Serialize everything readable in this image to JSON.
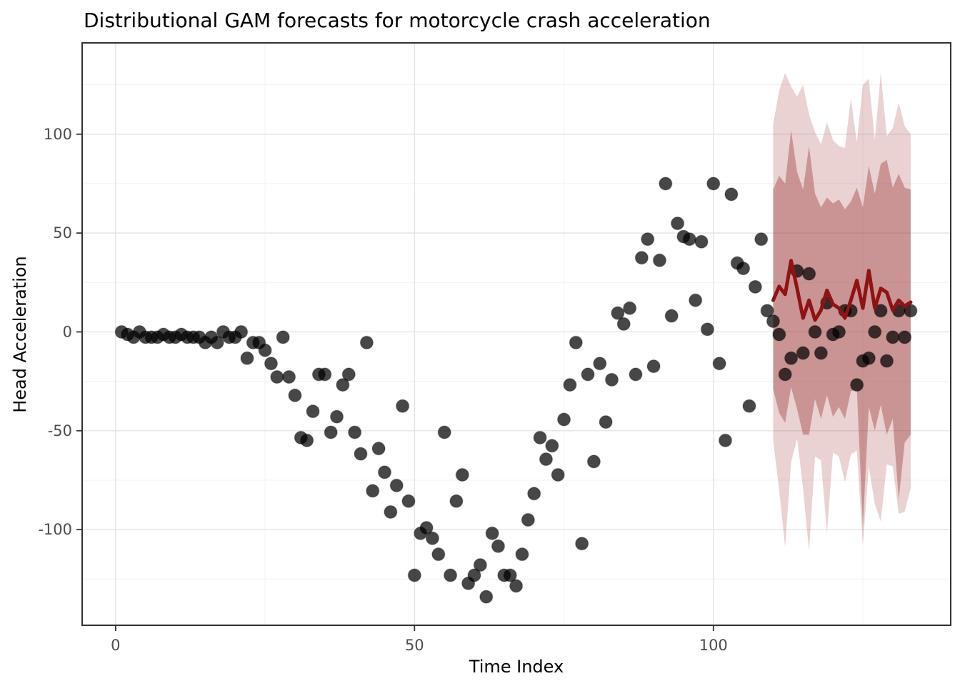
{
  "chart_data": {
    "type": "scatter",
    "title": "Distributional GAM forecasts for motorcycle crash acceleration",
    "xlabel": "Time Index",
    "ylabel": "Head Acceleration",
    "xlim": [
      -5.6,
      139.7
    ],
    "ylim": [
      -148.4,
      146.2
    ],
    "grid": "major+minor",
    "legend_position": "none",
    "x_ticks": {
      "major": [
        0,
        50,
        100
      ],
      "minor": [
        25,
        75,
        125
      ],
      "labels": [
        "0",
        "50",
        "100"
      ]
    },
    "y_ticks": {
      "major": [
        100,
        50,
        0,
        -50,
        -100
      ],
      "minor": [
        125,
        75,
        25,
        -25,
        -75,
        -125
      ],
      "labels": [
        "100",
        "50",
        "0",
        "-50",
        "-100"
      ]
    },
    "observed": {
      "name": "observed head acceleration",
      "x_start": 1,
      "values": [
        0.0,
        -1.3,
        -2.7,
        0.0,
        -2.7,
        -2.7,
        -2.7,
        -1.3,
        -2.7,
        -2.7,
        -1.3,
        -2.7,
        -2.7,
        -2.7,
        -5.4,
        -2.7,
        -5.4,
        0.0,
        -2.7,
        -2.7,
        0.0,
        -13.3,
        -5.4,
        -5.4,
        -9.3,
        -16.0,
        -22.8,
        -2.7,
        -22.8,
        -32.1,
        -53.5,
        -54.9,
        -40.2,
        -21.5,
        -21.5,
        -50.8,
        -42.9,
        -26.8,
        -21.5,
        -50.8,
        -61.7,
        -5.4,
        -80.4,
        -59.0,
        -71.0,
        -91.1,
        -77.7,
        -37.5,
        -85.6,
        -123.1,
        -101.9,
        -99.1,
        -104.4,
        -112.5,
        -50.8,
        -123.1,
        -85.6,
        -72.3,
        -127.2,
        -123.1,
        -117.9,
        -134.0,
        -101.9,
        -108.4,
        -123.1,
        -123.1,
        -128.5,
        -112.5,
        -95.1,
        -81.8,
        -53.5,
        -64.4,
        -57.6,
        -72.3,
        -44.3,
        -26.8,
        -5.4,
        -107.1,
        -21.5,
        -65.6,
        -16.0,
        -45.6,
        -24.2,
        9.5,
        4.0,
        12.0,
        -21.5,
        37.5,
        46.9,
        -17.4,
        36.2,
        75.0,
        8.1,
        54.9,
        48.2,
        46.9,
        16.0,
        45.6,
        1.3,
        75.0,
        -16.0,
        -54.9,
        69.6,
        34.8,
        32.1,
        -37.5,
        22.8,
        46.9,
        10.7,
        5.4,
        -1.3,
        -21.5,
        -13.3,
        30.8,
        -10.7,
        29.4,
        0.0,
        -10.7,
        14.7,
        -1.3,
        0.0,
        10.7,
        10.7,
        -26.8,
        -14.7,
        -13.3,
        0.0,
        10.7,
        -14.7,
        -2.7,
        10.7,
        -2.7,
        10.7
      ]
    },
    "forecast": {
      "name": "GAM forecast",
      "x_start": 110,
      "mean": [
        16,
        23,
        19,
        36,
        22,
        7,
        16,
        6,
        11,
        21,
        14,
        12,
        7,
        16,
        26,
        12,
        31,
        12,
        22,
        20,
        11,
        16,
        13,
        15
      ],
      "inner_high": [
        72,
        79,
        75,
        102,
        81,
        72,
        94,
        70,
        63,
        68,
        65,
        67,
        62,
        66,
        73,
        63,
        84,
        70,
        85,
        87,
        73,
        80,
        73,
        72
      ],
      "inner_low": [
        -29,
        -41,
        -46,
        -28,
        -39,
        -52,
        -52,
        -34,
        -44,
        -32,
        -43,
        -38,
        -44,
        -30,
        -29,
        -99,
        -38,
        -50,
        -37,
        -52,
        -44,
        -85,
        -56,
        -52
      ],
      "outer_high": [
        105,
        122,
        131,
        124,
        119,
        125,
        110,
        101,
        95,
        106,
        97,
        94,
        93,
        118,
        96,
        125,
        128,
        97,
        131,
        99,
        103,
        116,
        104,
        100
      ],
      "outer_low": [
        -55,
        -80,
        -109,
        -66,
        -54,
        -79,
        -111,
        -63,
        -65,
        -102,
        -61,
        -63,
        -76,
        -62,
        -60,
        -108,
        -68,
        -87,
        -96,
        -67,
        -68,
        -92,
        -91,
        -79
      ]
    },
    "colors": {
      "panel_background": "#FFFFFF",
      "panel_border": "#333333",
      "grid_major": "#E4E4E4",
      "grid_minor": "#F1F1F1",
      "tick_mark": "#333333",
      "tick_label": "#4D4D4D",
      "title_text": "#000000",
      "point_fill": "#000000",
      "point_opacity": 0.72,
      "mean_line": "#8F1313",
      "outer_ribbon": "rgba(170,75,75,0.25)",
      "inner_ribbon": "rgba(145,35,35,0.35)"
    }
  }
}
